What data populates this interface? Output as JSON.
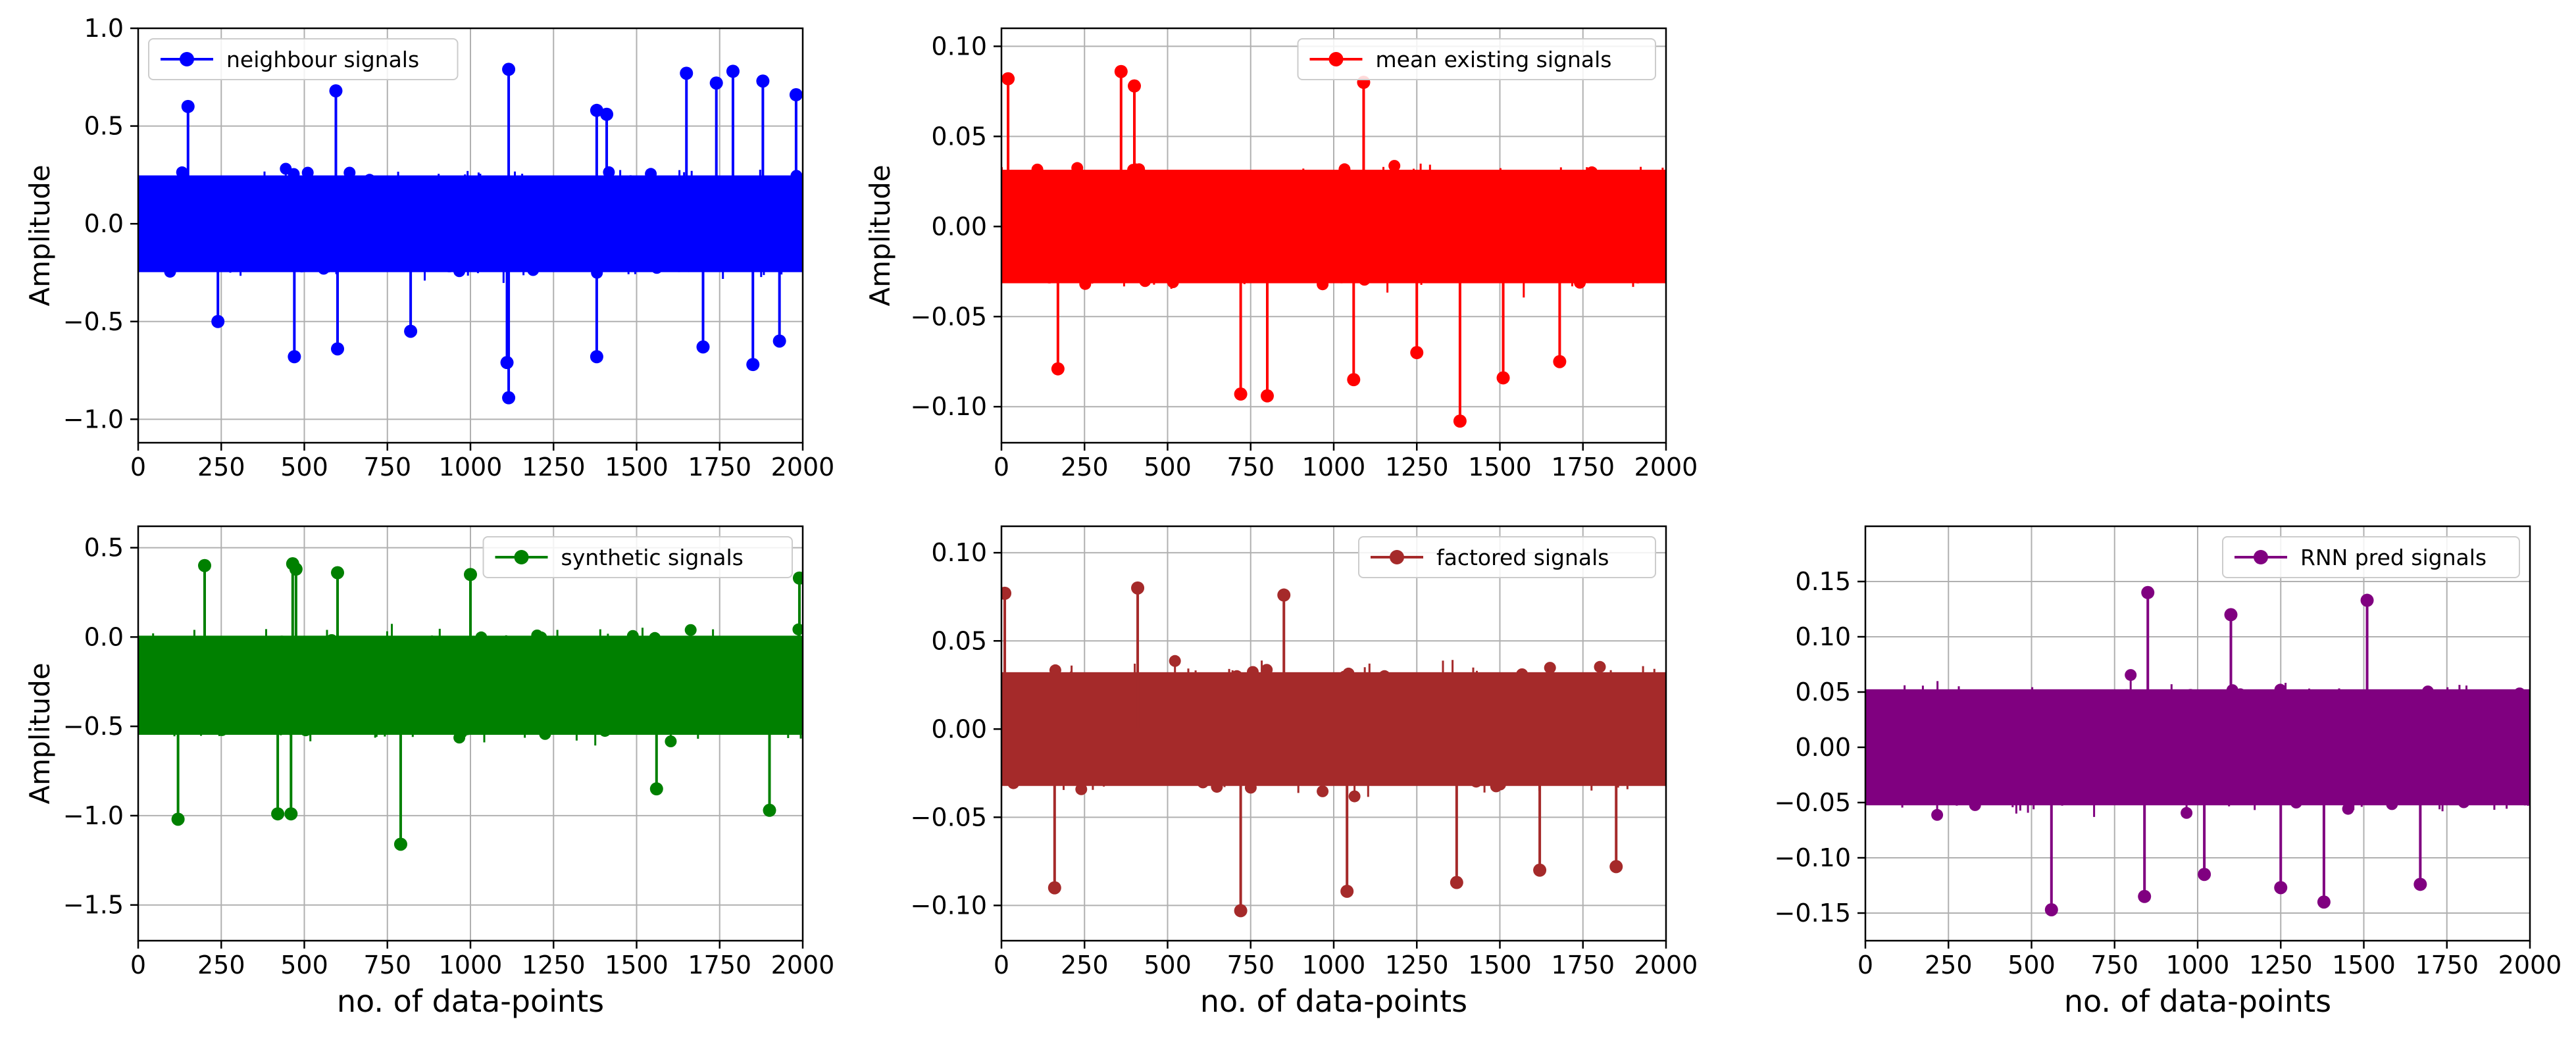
{
  "chart_data": [
    {
      "id": "neighbour",
      "type": "stem",
      "series": [
        {
          "name": "neighbour signals",
          "color": "#0000ff"
        }
      ],
      "ylabel": "Amplitude",
      "xlabel": "",
      "xlim": [
        0,
        2000
      ],
      "ylim": [
        -1.12,
        1.0
      ],
      "x_ticks": [
        0,
        250,
        500,
        750,
        1000,
        1250,
        1500,
        1750,
        2000
      ],
      "x_tick_labels": [
        "0",
        "250",
        "500",
        "750",
        "1000",
        "1250",
        "1500",
        "1750",
        "2000"
      ],
      "y_ticks": [
        -1.0,
        -0.5,
        0.0,
        0.5,
        1.0
      ],
      "y_tick_labels": [
        "−1.0",
        "−0.5",
        "0.0",
        "0.5",
        "1.0"
      ],
      "legend": "top-left",
      "grid": true,
      "n_points": 2000,
      "noise_center": 0.0,
      "noise_spread": 0.33,
      "peaks": [
        {
          "x": 1115,
          "y": 0.79
        },
        {
          "x": 1115,
          "y": -0.89
        },
        {
          "x": 1790,
          "y": 0.78
        },
        {
          "x": 1650,
          "y": 0.77
        },
        {
          "x": 1880,
          "y": 0.73
        },
        {
          "x": 1740,
          "y": 0.72
        },
        {
          "x": 595,
          "y": 0.68
        },
        {
          "x": 1980,
          "y": 0.66
        },
        {
          "x": 1380,
          "y": 0.58
        },
        {
          "x": 1410,
          "y": 0.56
        },
        {
          "x": 150,
          "y": 0.6
        },
        {
          "x": 470,
          "y": -0.68
        },
        {
          "x": 600,
          "y": -0.64
        },
        {
          "x": 1380,
          "y": -0.68
        },
        {
          "x": 1850,
          "y": -0.72
        },
        {
          "x": 1700,
          "y": -0.63
        },
        {
          "x": 1930,
          "y": -0.6
        },
        {
          "x": 1110,
          "y": -0.71
        },
        {
          "x": 820,
          "y": -0.55
        },
        {
          "x": 240,
          "y": -0.5
        }
      ]
    },
    {
      "id": "mean-existing",
      "type": "stem",
      "series": [
        {
          "name": "mean existing signals",
          "color": "#ff0000"
        }
      ],
      "ylabel": "Amplitude",
      "xlabel": "",
      "xlim": [
        0,
        2000
      ],
      "ylim": [
        -0.12,
        0.11
      ],
      "x_ticks": [
        0,
        250,
        500,
        750,
        1000,
        1250,
        1500,
        1750,
        2000
      ],
      "x_tick_labels": [
        "0",
        "250",
        "500",
        "750",
        "1000",
        "1250",
        "1500",
        "1750",
        "2000"
      ],
      "y_ticks": [
        -0.1,
        -0.05,
        0.0,
        0.05,
        0.1
      ],
      "y_tick_labels": [
        "−0.10",
        "−0.05",
        "0.00",
        "0.05",
        "0.10"
      ],
      "legend": "top-right",
      "grid": true,
      "n_points": 2000,
      "noise_center": 0.0,
      "noise_spread": 0.042,
      "peaks": [
        {
          "x": 360,
          "y": 0.086
        },
        {
          "x": 1090,
          "y": 0.08
        },
        {
          "x": 20,
          "y": 0.082
        },
        {
          "x": 400,
          "y": 0.078
        },
        {
          "x": 1380,
          "y": -0.108
        },
        {
          "x": 1510,
          "y": -0.084
        },
        {
          "x": 720,
          "y": -0.093
        },
        {
          "x": 800,
          "y": -0.094
        },
        {
          "x": 1060,
          "y": -0.085
        },
        {
          "x": 170,
          "y": -0.079
        },
        {
          "x": 1680,
          "y": -0.075
        },
        {
          "x": 1250,
          "y": -0.07
        }
      ]
    },
    {
      "id": "synthetic",
      "type": "stem",
      "series": [
        {
          "name": "synthetic signals",
          "color": "#008000"
        }
      ],
      "ylabel": "Amplitude",
      "xlabel": "no. of data-points",
      "xlim": [
        0,
        2000
      ],
      "ylim": [
        -1.7,
        0.62
      ],
      "x_ticks": [
        0,
        250,
        500,
        750,
        1000,
        1250,
        1500,
        1750,
        2000
      ],
      "x_tick_labels": [
        "0",
        "250",
        "500",
        "750",
        "1000",
        "1250",
        "1500",
        "1750",
        "2000"
      ],
      "y_ticks": [
        -1.5,
        -1.0,
        -0.5,
        0.0,
        0.5
      ],
      "y_tick_labels": [
        "−1.5",
        "−1.0",
        "−0.5",
        "0.0",
        "0.5"
      ],
      "legend": "top-right",
      "grid": true,
      "n_points": 2000,
      "noise_center": -0.27,
      "noise_spread": 0.37,
      "peaks": [
        {
          "x": 200,
          "y": 0.4
        },
        {
          "x": 465,
          "y": 0.41
        },
        {
          "x": 475,
          "y": 0.38
        },
        {
          "x": 1000,
          "y": 0.35
        },
        {
          "x": 600,
          "y": 0.36
        },
        {
          "x": 1990,
          "y": 0.33
        },
        {
          "x": 790,
          "y": -1.16
        },
        {
          "x": 120,
          "y": -1.02
        },
        {
          "x": 420,
          "y": -0.99
        },
        {
          "x": 460,
          "y": -0.99
        },
        {
          "x": 1900,
          "y": -0.97
        },
        {
          "x": 1560,
          "y": -0.85
        }
      ]
    },
    {
      "id": "factored",
      "type": "stem",
      "series": [
        {
          "name": "factored signals",
          "color": "#a52a2a"
        }
      ],
      "ylabel": "",
      "xlabel": "no. of data-points",
      "xlim": [
        0,
        2000
      ],
      "ylim": [
        -0.12,
        0.115
      ],
      "x_ticks": [
        0,
        250,
        500,
        750,
        1000,
        1250,
        1500,
        1750,
        2000
      ],
      "x_tick_labels": [
        "0",
        "250",
        "500",
        "750",
        "1000",
        "1250",
        "1500",
        "1750",
        "2000"
      ],
      "y_ticks": [
        -0.1,
        -0.05,
        0.0,
        0.05,
        0.1
      ],
      "y_tick_labels": [
        "−0.10",
        "−0.05",
        "0.00",
        "0.05",
        "0.10"
      ],
      "legend": "top-right",
      "grid": true,
      "n_points": 2000,
      "noise_center": 0.0,
      "noise_spread": 0.043,
      "peaks": [
        {
          "x": 410,
          "y": 0.08
        },
        {
          "x": 10,
          "y": 0.077
        },
        {
          "x": 850,
          "y": 0.076
        },
        {
          "x": 720,
          "y": -0.103
        },
        {
          "x": 1040,
          "y": -0.092
        },
        {
          "x": 160,
          "y": -0.09
        },
        {
          "x": 1370,
          "y": -0.087
        },
        {
          "x": 1620,
          "y": -0.08
        },
        {
          "x": 1850,
          "y": -0.078
        }
      ]
    },
    {
      "id": "rnn-pred",
      "type": "stem",
      "series": [
        {
          "name": "RNN pred signals",
          "color": "#800080"
        }
      ],
      "ylabel": "",
      "xlabel": "no. of data-points",
      "xlim": [
        0,
        2000
      ],
      "ylim": [
        -0.175,
        0.2
      ],
      "x_ticks": [
        0,
        250,
        500,
        750,
        1000,
        1250,
        1500,
        1750,
        2000
      ],
      "x_tick_labels": [
        "0",
        "250",
        "500",
        "750",
        "1000",
        "1250",
        "1500",
        "1750",
        "2000"
      ],
      "y_ticks": [
        -0.15,
        -0.1,
        -0.05,
        0.0,
        0.05,
        0.1,
        0.15
      ],
      "y_tick_labels": [
        "−0.15",
        "−0.10",
        "−0.05",
        "0.00",
        "0.05",
        "0.10",
        "0.15"
      ],
      "legend": "top-right",
      "grid": true,
      "n_points": 2000,
      "noise_center": 0.0,
      "noise_spread": 0.07,
      "peaks": [
        {
          "x": 850,
          "y": 0.14
        },
        {
          "x": 1510,
          "y": 0.133
        },
        {
          "x": 1100,
          "y": 0.12
        },
        {
          "x": 560,
          "y": -0.147
        },
        {
          "x": 1380,
          "y": -0.14
        },
        {
          "x": 840,
          "y": -0.135
        },
        {
          "x": 1250,
          "y": -0.127
        },
        {
          "x": 1670,
          "y": -0.124
        },
        {
          "x": 1020,
          "y": -0.115
        }
      ]
    }
  ]
}
